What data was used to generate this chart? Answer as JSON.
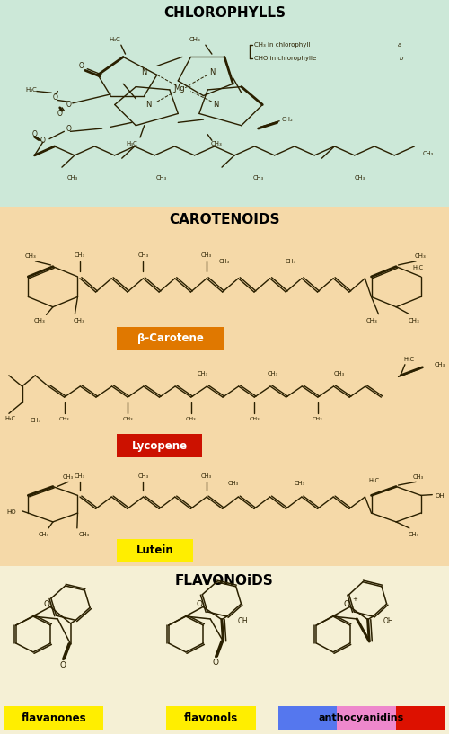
{
  "title_chlorophylls": "CHLOROPHYLLS",
  "title_carotenoids": "CAROTENOIDS",
  "title_flavonoids": "FLAVONOiDS",
  "bg_chlorophylls": "#cce8d8",
  "bg_carotenoids": "#f5d9a8",
  "bg_flavonoids": "#f5f0d5",
  "label_beta_carotene": "β-Carotene",
  "label_lycopene": "Lycopene",
  "label_lutein": "Lutein",
  "label_flavanones": "flavanones",
  "label_flavonols": "flavonols",
  "label_anthocyanidins": "anthocyanidins",
  "color_beta_carotene_bg": "#e07800",
  "color_lycopene_bg": "#cc1100",
  "color_lutein_bg": "#ffee00",
  "color_flavanones_bg": "#ffee00",
  "color_flavonols_bg": "#ffee00",
  "color_anthocyanidins_bg1": "#5577ee",
  "color_anthocyanidins_bg2": "#ee88cc",
  "color_anthocyanidins_bg3": "#dd1100",
  "structure_color": "#2a2000",
  "fig_width": 5.0,
  "fig_height": 8.17,
  "dpi": 100
}
